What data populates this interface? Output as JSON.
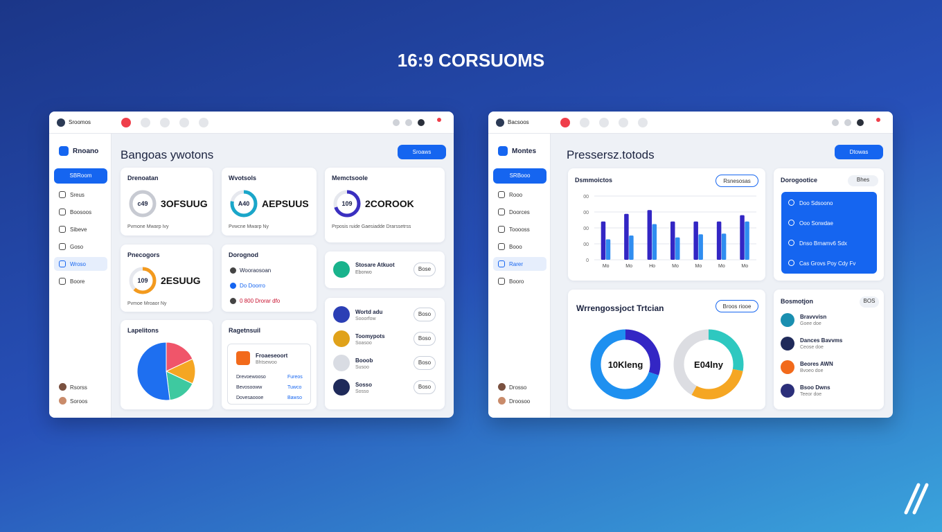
{
  "title": "16:9 CORSUOMS",
  "left": {
    "topbar": {
      "user": "Sroomos"
    },
    "sidebar": {
      "brand": "Rnoano",
      "button": "SBRoom",
      "items": [
        "Sreus",
        "Boosoos",
        "Sibeve",
        "Goso",
        "Wroso",
        "Boore"
      ],
      "active": 4,
      "users": [
        "Rsorss",
        "Soroos"
      ]
    },
    "heading": "Bangoas ywotons",
    "action": "Sroaws",
    "stat_cards": [
      {
        "title": "Drenoatan",
        "ring_label": "c49",
        "ring": 100,
        "ring_color": "#c7cad2",
        "value": "3OFSUUG",
        "footer": "Pvmone  Mwarp Ivy"
      },
      {
        "title": "Wvotsols",
        "ring_label": "A40",
        "ring": 78,
        "ring_color": "#1aa6c9",
        "value": "AEPSUUS",
        "footer": "Pvwcne  Mwarp Ny"
      },
      {
        "title": "Memctsoole",
        "ring_label": "109",
        "ring": 70,
        "ring_color": "#3a2fc0",
        "value": "2COROOK",
        "footer": "Prposis ruide   Gaesiadde   Drarssetrss"
      },
      {
        "title": "Pnecogors",
        "ring_label": "109",
        "ring": 62,
        "ring_color": "#f39a1e",
        "value": "2ESUUG",
        "footer": "Pvmoe  Mroaor Ny"
      }
    ],
    "activity": {
      "title": "Dorognod",
      "items": [
        "Wooraosoan",
        "Do Doorro",
        "0 800 Drorar dfo"
      ]
    },
    "promo": {
      "title": "Stosare Atkuot",
      "sub": "Eborwo",
      "button": "Bose"
    },
    "pie": {
      "title": "Lapelitons",
      "values": [
        18,
        14,
        16,
        52
      ],
      "colors": [
        "#f0556a",
        "#f5a623",
        "#3ec9a0",
        "#1e6ff0"
      ]
    },
    "report": {
      "title": "Ragetnsuil",
      "box_title": "Froaeseoort",
      "box_sub": "Bhtsewoo",
      "rows": [
        [
          "Drevoewooso",
          "Fureos"
        ],
        [
          "Bevosooww",
          "Tuwco"
        ],
        [
          "Dovesaoooe",
          "Bawso"
        ]
      ]
    },
    "contacts": [
      {
        "name": "Wortd adu",
        "sub": "Sooorfow",
        "button": "Boso"
      },
      {
        "name": "Toomypots",
        "sub": "Soasoo",
        "button": "Boso"
      },
      {
        "name": "Booob",
        "sub": "Susoo",
        "button": "Boso"
      },
      {
        "name": "Sosso",
        "sub": "Sosso",
        "button": "Boso"
      }
    ]
  },
  "right": {
    "topbar": {
      "user": "Bacsoos"
    },
    "sidebar": {
      "brand": "Montes",
      "button": "SRBooo",
      "items": [
        "Rooo",
        "Doorces",
        "Tooooss",
        "Booo",
        "Rarer",
        "Booro"
      ],
      "active": 4,
      "users": [
        "Drosso",
        "Droosoo"
      ]
    },
    "heading": "Pressersz.totods",
    "action": "Dtowas",
    "bars": {
      "title": "Dsmmoictos",
      "tag": "Rsnesosas",
      "ylim": [
        0,
        100
      ],
      "yticks": [
        0,
        {
          "value": 25,
          "label": "00"
        },
        {
          "value": 50,
          "label": "00"
        },
        {
          "value": 75,
          "label": "00"
        },
        {
          "value": 100,
          "label": "00"
        }
      ],
      "categories": [
        "Mo",
        "Mo",
        "Ho",
        "Mo",
        "Mo",
        "Mo",
        "Mo"
      ],
      "series": [
        {
          "color": "#3326c4",
          "values": [
            60,
            72,
            78,
            60,
            60,
            60,
            70
          ]
        },
        {
          "color": "#2f8df0",
          "values": [
            32,
            38,
            56,
            35,
            40,
            41,
            60
          ]
        }
      ]
    },
    "notices": {
      "title": "Dorogootice",
      "tag": "Bhes",
      "items": [
        "Doo Sdsoono",
        "Ooo Sorwdae",
        "Dnso Brnamv6   Sdx",
        "Cas  Grovs  Poy  Cdy  Fv"
      ]
    },
    "donuts": {
      "title": "Wrrengossjoct Trtcian",
      "tag": "Broos riooe",
      "charts": [
        {
          "label": "10Kleng",
          "values": [
            30,
            70
          ],
          "colors": [
            "#3326c4",
            "#1e90f0"
          ]
        },
        {
          "label": "E04lny",
          "values": [
            28,
            30,
            42
          ],
          "colors": [
            "#2ec8c0",
            "#f5a623",
            "#dcdde2"
          ]
        }
      ]
    },
    "team": {
      "title": "Bosmotjon",
      "tag": "BOS",
      "members": [
        {
          "name": "Bravvvisn",
          "sub": "Goee doe"
        },
        {
          "name": "Dances Bavvms",
          "sub": "Ceose doe"
        },
        {
          "name": "Beores AWN",
          "sub": "Bvoeo doe"
        },
        {
          "name": "Bsoo Dwns",
          "sub": "Teeor doe"
        }
      ]
    }
  }
}
